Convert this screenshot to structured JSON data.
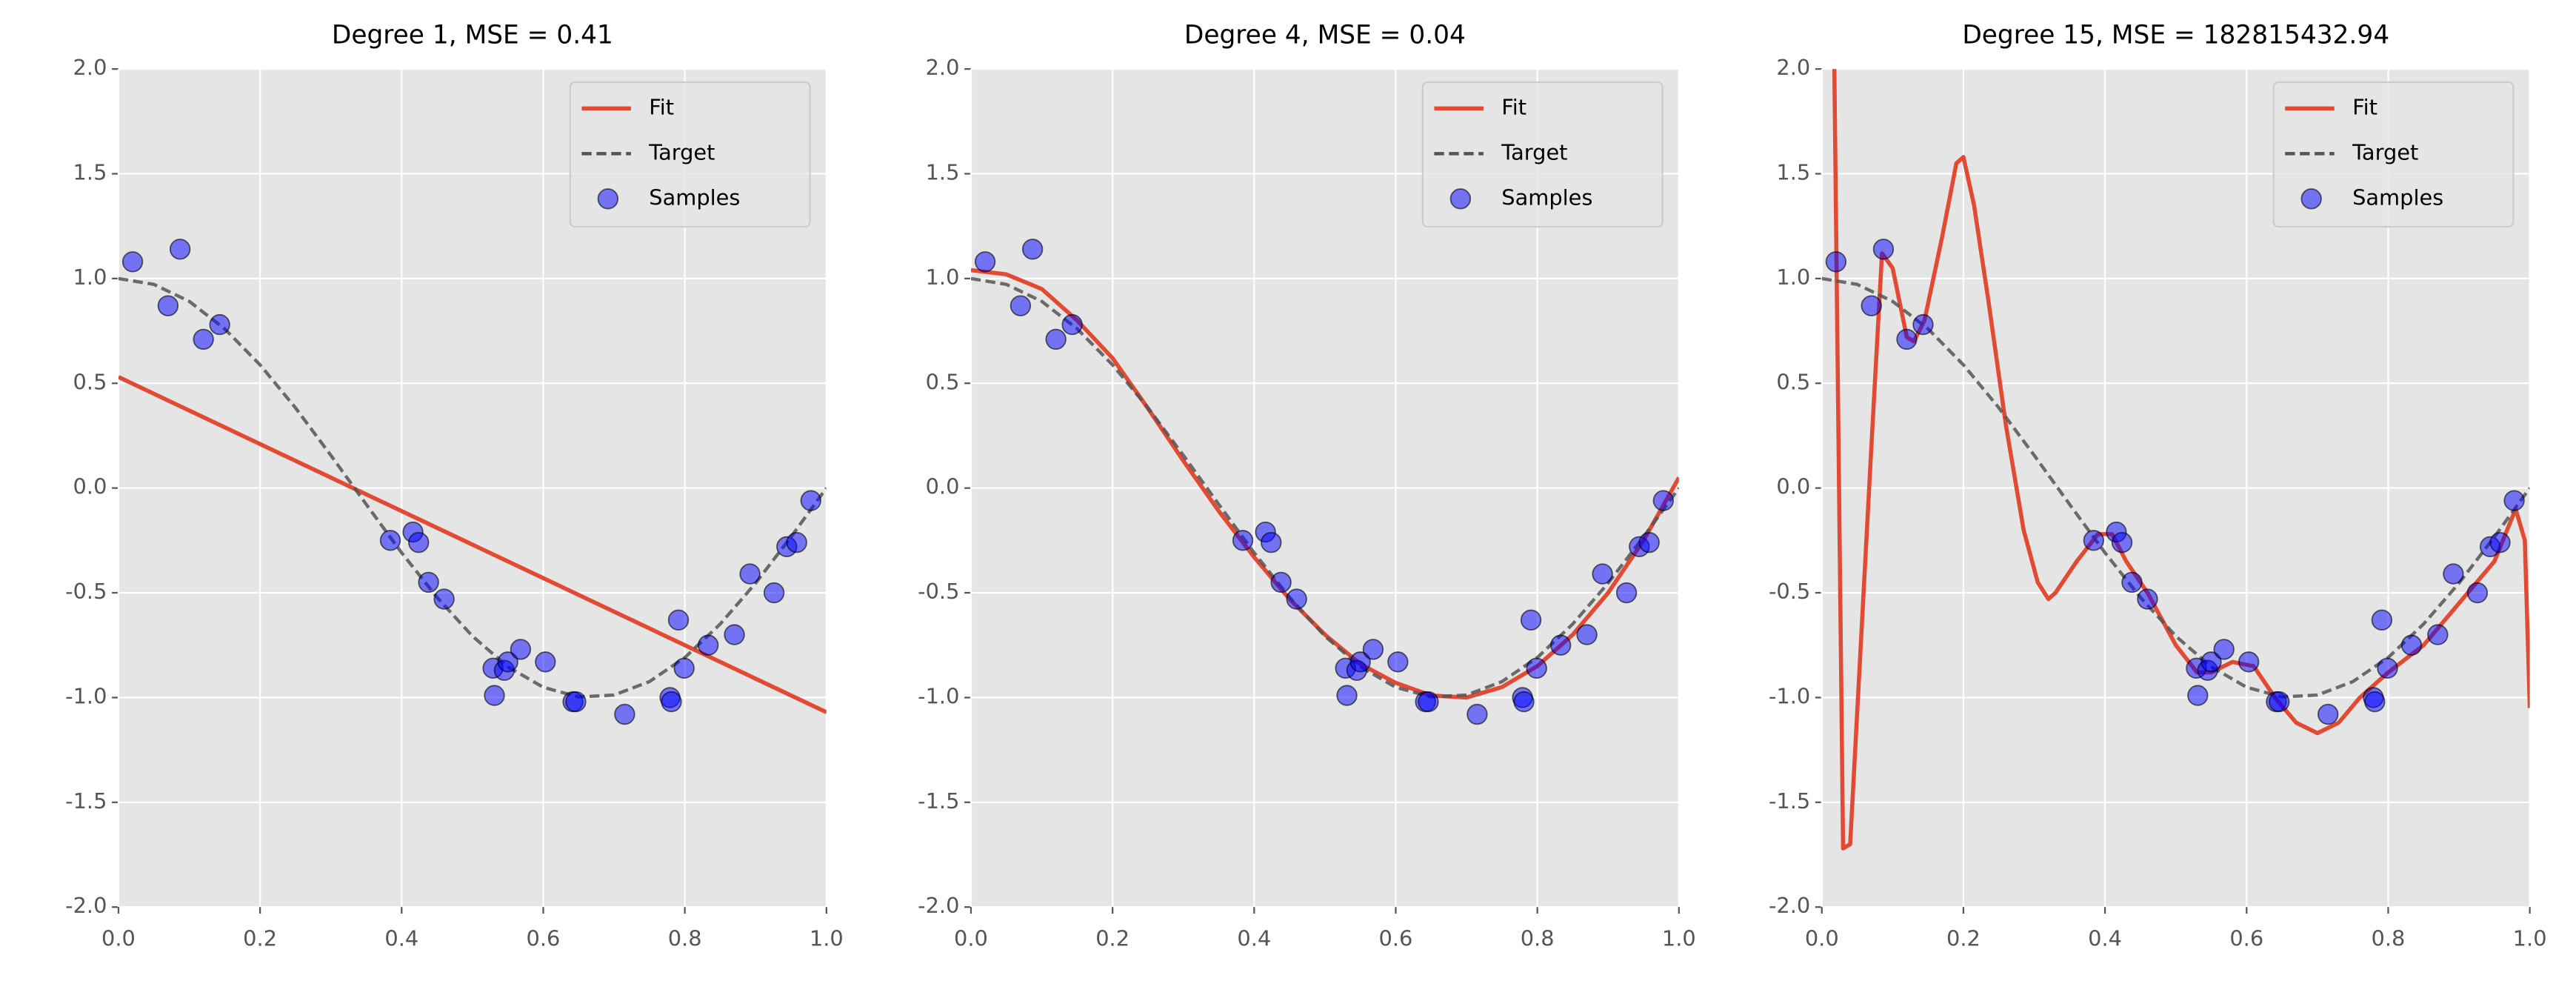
{
  "chart_data": [
    {
      "type": "line",
      "title": "Degree 1, MSE = 0.41",
      "xlim": [
        0,
        1
      ],
      "ylim": [
        -2,
        2
      ],
      "xticks": [
        {
          "value": 0,
          "label": "0.0"
        },
        0.2,
        0.4,
        0.6,
        0.8,
        {
          "value": 1,
          "label": "1.0"
        }
      ],
      "yticks": [
        {
          "value": -2,
          "label": "-2.0"
        },
        -1.5,
        {
          "value": -1,
          "label": "-1.0"
        },
        -0.5,
        {
          "value": 0,
          "label": "0.0"
        },
        0.5,
        {
          "value": 1,
          "label": "1.0"
        },
        1.5,
        {
          "value": 2,
          "label": "2.0"
        }
      ],
      "grid": true,
      "legend": "upper right",
      "series": [
        {
          "name": "Fit",
          "color": "#e24a33",
          "x": [
            0,
            1
          ],
          "values": [
            0.53,
            -1.07
          ]
        },
        {
          "name": "Target",
          "color": "#555555",
          "dashed": true,
          "x": [
            0,
            0.05,
            0.1,
            0.15,
            0.2,
            0.25,
            0.3,
            0.35,
            0.4,
            0.45,
            0.5,
            0.55,
            0.6,
            0.65,
            0.7,
            0.75,
            0.8,
            0.85,
            0.9,
            0.95,
            1
          ],
          "values": [
            1,
            0.972,
            0.891,
            0.76,
            0.588,
            0.383,
            0.156,
            -0.078,
            -0.309,
            -0.522,
            -0.707,
            -0.853,
            -0.951,
            -0.997,
            -0.988,
            -0.924,
            -0.809,
            -0.649,
            -0.454,
            -0.233,
            0
          ]
        },
        {
          "name": "Samples",
          "color": "#0000ff",
          "type": "scatter",
          "x": [
            0.02,
            0.07,
            0.087,
            0.12,
            0.143,
            0.384,
            0.416,
            0.424,
            0.438,
            0.46,
            0.529,
            0.531,
            0.545,
            0.55,
            0.568,
            0.603,
            0.642,
            0.646,
            0.715,
            0.779,
            0.781,
            0.791,
            0.799,
            0.833,
            0.87,
            0.892,
            0.926,
            0.944,
            0.958,
            0.978
          ],
          "values": [
            1.08,
            0.87,
            1.14,
            0.71,
            0.78,
            -0.25,
            -0.21,
            -0.26,
            -0.45,
            -0.53,
            -0.86,
            -0.99,
            -0.87,
            -0.83,
            -0.77,
            -0.83,
            -1.02,
            -1.02,
            -1.08,
            -1.0,
            -1.02,
            -0.63,
            -0.86,
            -0.75,
            -0.7,
            -0.41,
            -0.5,
            -0.28,
            -0.26,
            -0.06
          ]
        }
      ]
    },
    {
      "type": "line",
      "title": "Degree 4, MSE = 0.04",
      "xlim": [
        0,
        1
      ],
      "ylim": [
        -2,
        2
      ],
      "xticks": [
        {
          "value": 0,
          "label": "0.0"
        },
        0.2,
        0.4,
        0.6,
        0.8,
        {
          "value": 1,
          "label": "1.0"
        }
      ],
      "yticks": [
        {
          "value": -2,
          "label": "-2.0"
        },
        -1.5,
        {
          "value": -1,
          "label": "-1.0"
        },
        -0.5,
        {
          "value": 0,
          "label": "0.0"
        },
        0.5,
        {
          "value": 1,
          "label": "1.0"
        },
        1.5,
        {
          "value": 2,
          "label": "2.0"
        }
      ],
      "grid": true,
      "legend": "upper right",
      "series": [
        {
          "name": "Fit",
          "color": "#e24a33",
          "x": [
            0,
            0.05,
            0.1,
            0.15,
            0.2,
            0.25,
            0.3,
            0.35,
            0.4,
            0.45,
            0.5,
            0.55,
            0.6,
            0.65,
            0.7,
            0.75,
            0.8,
            0.85,
            0.9,
            0.95,
            1
          ],
          "values": [
            1.04,
            1.02,
            0.95,
            0.8,
            0.62,
            0.38,
            0.13,
            -0.11,
            -0.33,
            -0.53,
            -0.7,
            -0.84,
            -0.93,
            -0.99,
            -1.0,
            -0.95,
            -0.85,
            -0.7,
            -0.5,
            -0.25,
            0.05
          ]
        },
        {
          "name": "Target",
          "color": "#555555",
          "dashed": true,
          "x": [
            0,
            0.05,
            0.1,
            0.15,
            0.2,
            0.25,
            0.3,
            0.35,
            0.4,
            0.45,
            0.5,
            0.55,
            0.6,
            0.65,
            0.7,
            0.75,
            0.8,
            0.85,
            0.9,
            0.95,
            1
          ],
          "values": [
            1,
            0.972,
            0.891,
            0.76,
            0.588,
            0.383,
            0.156,
            -0.078,
            -0.309,
            -0.522,
            -0.707,
            -0.853,
            -0.951,
            -0.997,
            -0.988,
            -0.924,
            -0.809,
            -0.649,
            -0.454,
            -0.233,
            0
          ]
        },
        {
          "name": "Samples",
          "color": "#0000ff",
          "type": "scatter",
          "x": [
            0.02,
            0.07,
            0.087,
            0.12,
            0.143,
            0.384,
            0.416,
            0.424,
            0.438,
            0.46,
            0.529,
            0.531,
            0.545,
            0.55,
            0.568,
            0.603,
            0.642,
            0.646,
            0.715,
            0.779,
            0.781,
            0.791,
            0.799,
            0.833,
            0.87,
            0.892,
            0.926,
            0.944,
            0.958,
            0.978
          ],
          "values": [
            1.08,
            0.87,
            1.14,
            0.71,
            0.78,
            -0.25,
            -0.21,
            -0.26,
            -0.45,
            -0.53,
            -0.86,
            -0.99,
            -0.87,
            -0.83,
            -0.77,
            -0.83,
            -1.02,
            -1.02,
            -1.08,
            -1.0,
            -1.02,
            -0.63,
            -0.86,
            -0.75,
            -0.7,
            -0.41,
            -0.5,
            -0.28,
            -0.26,
            -0.06
          ]
        }
      ]
    },
    {
      "type": "line",
      "title": "Degree 15, MSE = 182815432.94",
      "xlim": [
        0,
        1
      ],
      "ylim": [
        -2,
        2
      ],
      "xticks": [
        {
          "value": 0,
          "label": "0.0"
        },
        0.2,
        0.4,
        0.6,
        0.8,
        {
          "value": 1,
          "label": "1.0"
        }
      ],
      "yticks": [
        {
          "value": -2,
          "label": "-2.0"
        },
        -1.5,
        {
          "value": -1,
          "label": "-1.0"
        },
        -0.5,
        {
          "value": 0,
          "label": "0.0"
        },
        0.5,
        {
          "value": 1,
          "label": "1.0"
        },
        1.5,
        {
          "value": 2,
          "label": "2.0"
        }
      ],
      "grid": true,
      "legend": "upper right",
      "series": [
        {
          "name": "Fit",
          "color": "#e24a33",
          "x": [
            0.016,
            0.03,
            0.04,
            0.07,
            0.085,
            0.1,
            0.12,
            0.13,
            0.145,
            0.17,
            0.19,
            0.2,
            0.215,
            0.235,
            0.26,
            0.285,
            0.305,
            0.32,
            0.33,
            0.36,
            0.39,
            0.41,
            0.43,
            0.46,
            0.5,
            0.53,
            0.55,
            0.58,
            0.61,
            0.64,
            0.67,
            0.7,
            0.73,
            0.76,
            0.8,
            0.85,
            0.9,
            0.95,
            0.98,
            0.993,
            1
          ],
          "values": [
            2.5,
            -1.72,
            -1.7,
            0.2,
            1.12,
            1.05,
            0.72,
            0.7,
            0.8,
            1.2,
            1.55,
            1.58,
            1.35,
            0.9,
            0.3,
            -0.2,
            -0.45,
            -0.53,
            -0.5,
            -0.35,
            -0.22,
            -0.22,
            -0.35,
            -0.5,
            -0.75,
            -0.88,
            -0.88,
            -0.83,
            -0.85,
            -1.0,
            -1.12,
            -1.17,
            -1.12,
            -1.0,
            -0.88,
            -0.75,
            -0.55,
            -0.35,
            -0.1,
            -0.25,
            -1.05
          ]
        },
        {
          "name": "Target",
          "color": "#555555",
          "dashed": true,
          "x": [
            0,
            0.05,
            0.1,
            0.15,
            0.2,
            0.25,
            0.3,
            0.35,
            0.4,
            0.45,
            0.5,
            0.55,
            0.6,
            0.65,
            0.7,
            0.75,
            0.8,
            0.85,
            0.9,
            0.95,
            1
          ],
          "values": [
            1,
            0.972,
            0.891,
            0.76,
            0.588,
            0.383,
            0.156,
            -0.078,
            -0.309,
            -0.522,
            -0.707,
            -0.853,
            -0.951,
            -0.997,
            -0.988,
            -0.924,
            -0.809,
            -0.649,
            -0.454,
            -0.233,
            0
          ]
        },
        {
          "name": "Samples",
          "color": "#0000ff",
          "type": "scatter",
          "x": [
            0.02,
            0.07,
            0.087,
            0.12,
            0.143,
            0.384,
            0.416,
            0.424,
            0.438,
            0.46,
            0.529,
            0.531,
            0.545,
            0.55,
            0.568,
            0.603,
            0.642,
            0.646,
            0.715,
            0.779,
            0.781,
            0.791,
            0.799,
            0.833,
            0.87,
            0.892,
            0.926,
            0.944,
            0.958,
            0.978
          ],
          "values": [
            1.08,
            0.87,
            1.14,
            0.71,
            0.78,
            -0.25,
            -0.21,
            -0.26,
            -0.45,
            -0.53,
            -0.86,
            -0.99,
            -0.87,
            -0.83,
            -0.77,
            -0.83,
            -1.02,
            -1.02,
            -1.08,
            -1.0,
            -1.02,
            -0.63,
            -0.86,
            -0.75,
            -0.7,
            -0.41,
            -0.5,
            -0.28,
            -0.26,
            -0.06
          ]
        }
      ]
    }
  ]
}
